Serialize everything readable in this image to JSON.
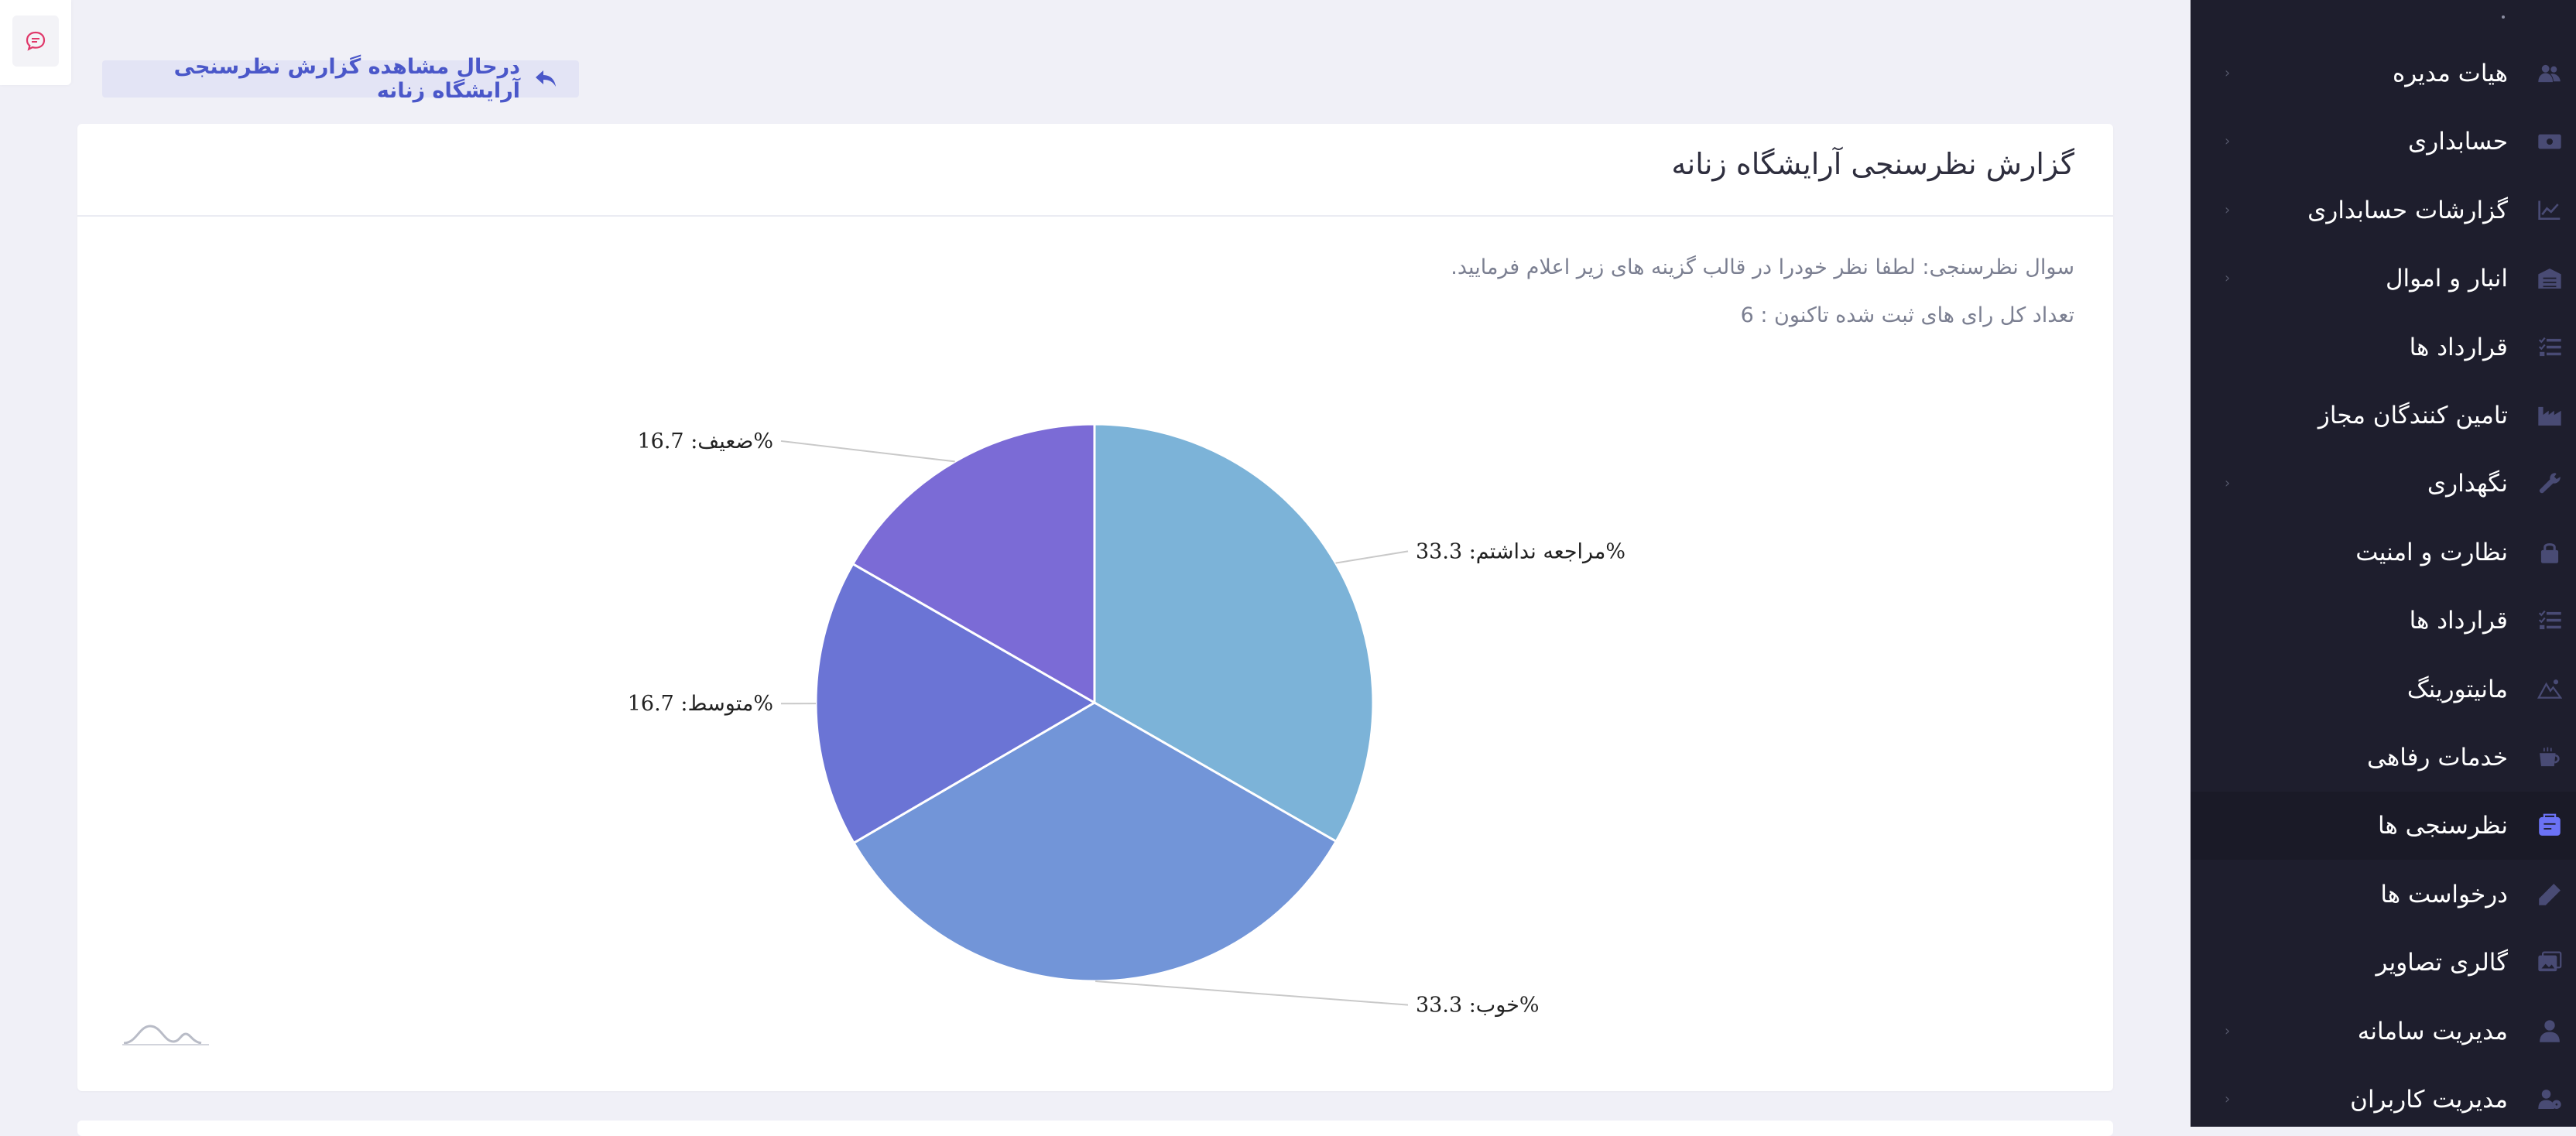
{
  "breadcrumb": {
    "text": "درحال مشاهده گزارش نظرسنجی آرایشگاه زنانه",
    "icon": "reply-arrow-icon"
  },
  "report": {
    "title": "گزارش نظرسنجی آرایشگاه زنانه",
    "question": "سوال نظرسنجی: لطفا نظر خودرا در قالب گزینه های زیر اعلام فرمایید.",
    "total_votes": "تعداد کل رای های ثبت شده تاکنون : 6"
  },
  "chart_data": {
    "type": "pie",
    "title": "",
    "slices": [
      {
        "name": "مراجعه نداشتم",
        "value": 33.3,
        "label": "مراجعه نداشتم: 33.3%",
        "color": "#7cb3d8"
      },
      {
        "name": "خوب",
        "value": 33.3,
        "label": "خوب: 33.3%",
        "color": "#7295d8"
      },
      {
        "name": "متوسط",
        "value": 16.7,
        "label": "متوسط: 16.7%",
        "color": "#6b74d5"
      },
      {
        "name": "ضعیف",
        "value": 16.7,
        "label": "ضعیف: 16.7%",
        "color": "#7b6bd6"
      }
    ],
    "legend": "none"
  },
  "sidebar": {
    "items": [
      {
        "label": "هیات مدیره",
        "icon": "users-icon",
        "arrow": true,
        "active": false
      },
      {
        "label": "حسابداری",
        "icon": "money-icon",
        "arrow": true,
        "active": false
      },
      {
        "label": "گزارشات حسابداری",
        "icon": "chart-line-icon",
        "arrow": true,
        "active": false
      },
      {
        "label": "انبار و اموال",
        "icon": "warehouse-icon",
        "arrow": true,
        "active": false
      },
      {
        "label": "قرارداد ها",
        "icon": "list-icon",
        "arrow": false,
        "active": false
      },
      {
        "label": "تامین کنندگان مجاز",
        "icon": "industry-icon",
        "arrow": false,
        "active": false
      },
      {
        "label": "نگهداری",
        "icon": "wrench-icon",
        "arrow": true,
        "active": false
      },
      {
        "label": "نظارت و امنیت",
        "icon": "lock-icon",
        "arrow": false,
        "active": false
      },
      {
        "label": "قرارداد ها",
        "icon": "list-icon",
        "arrow": false,
        "active": false
      },
      {
        "label": "مانیتورینگ",
        "icon": "mountain-icon",
        "arrow": false,
        "active": false
      },
      {
        "label": "خدمات رفاهی",
        "icon": "coffee-icon",
        "arrow": false,
        "active": false
      },
      {
        "label": "نظرسنجی ها",
        "icon": "poll-box-icon",
        "arrow": false,
        "active": true
      },
      {
        "label": "درخواست ها",
        "icon": "pencil-icon",
        "arrow": false,
        "active": false
      },
      {
        "label": "گالری تصاویر",
        "icon": "images-icon",
        "arrow": false,
        "active": false
      },
      {
        "label": "مدیریت سامانه",
        "icon": "user-tie-icon",
        "arrow": true,
        "active": false
      },
      {
        "label": "مدیریت کاربران",
        "icon": "users-cog-icon",
        "arrow": true,
        "active": false
      }
    ]
  },
  "colors": {
    "sidebar_bg": "#1e1e2d",
    "sidebar_active_bg": "#1a1a27",
    "sidebar_icon": "#494b74",
    "sidebar_icon_active": "#6b72f5",
    "accent": "#4a57c9",
    "page_bg": "#f0f0f7"
  }
}
